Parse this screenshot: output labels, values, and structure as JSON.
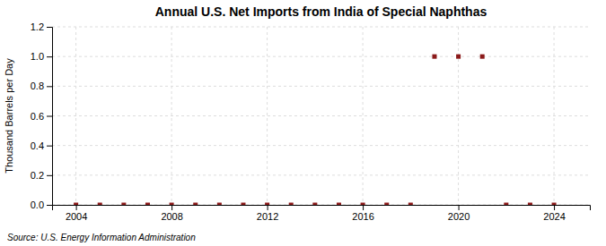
{
  "chart_data": {
    "type": "scatter",
    "title": "Annual U.S. Net Imports from India of Special Naphthas",
    "ylabel": "Thousand Barrels per Day",
    "source": "Source: U.S. Energy Information Administration",
    "x": [
      2004,
      2005,
      2006,
      2007,
      2008,
      2009,
      2010,
      2011,
      2012,
      2013,
      2014,
      2015,
      2016,
      2017,
      2018,
      2019,
      2020,
      2021,
      2022,
      2023,
      2024
    ],
    "values": [
      0.0,
      0.0,
      0.0,
      0.0,
      0.0,
      0.0,
      0.0,
      0.0,
      0.0,
      0.0,
      0.0,
      0.0,
      0.0,
      0.0,
      0.0,
      1.0,
      1.0,
      1.0,
      0.0,
      0.0,
      0.0
    ],
    "color": "#8b1a1a",
    "marker": "square",
    "xlim": [
      2003.0,
      2025.5
    ],
    "xticks": [
      2004,
      2008,
      2012,
      2016,
      2020,
      2024
    ],
    "ylim": [
      0.0,
      1.2
    ],
    "yticks": [
      {
        "value": 0.0,
        "label": "0.0"
      },
      0.2,
      0.4,
      0.6,
      0.8,
      {
        "value": 1.0,
        "label": "1.0"
      },
      1.2
    ],
    "grid": true
  }
}
